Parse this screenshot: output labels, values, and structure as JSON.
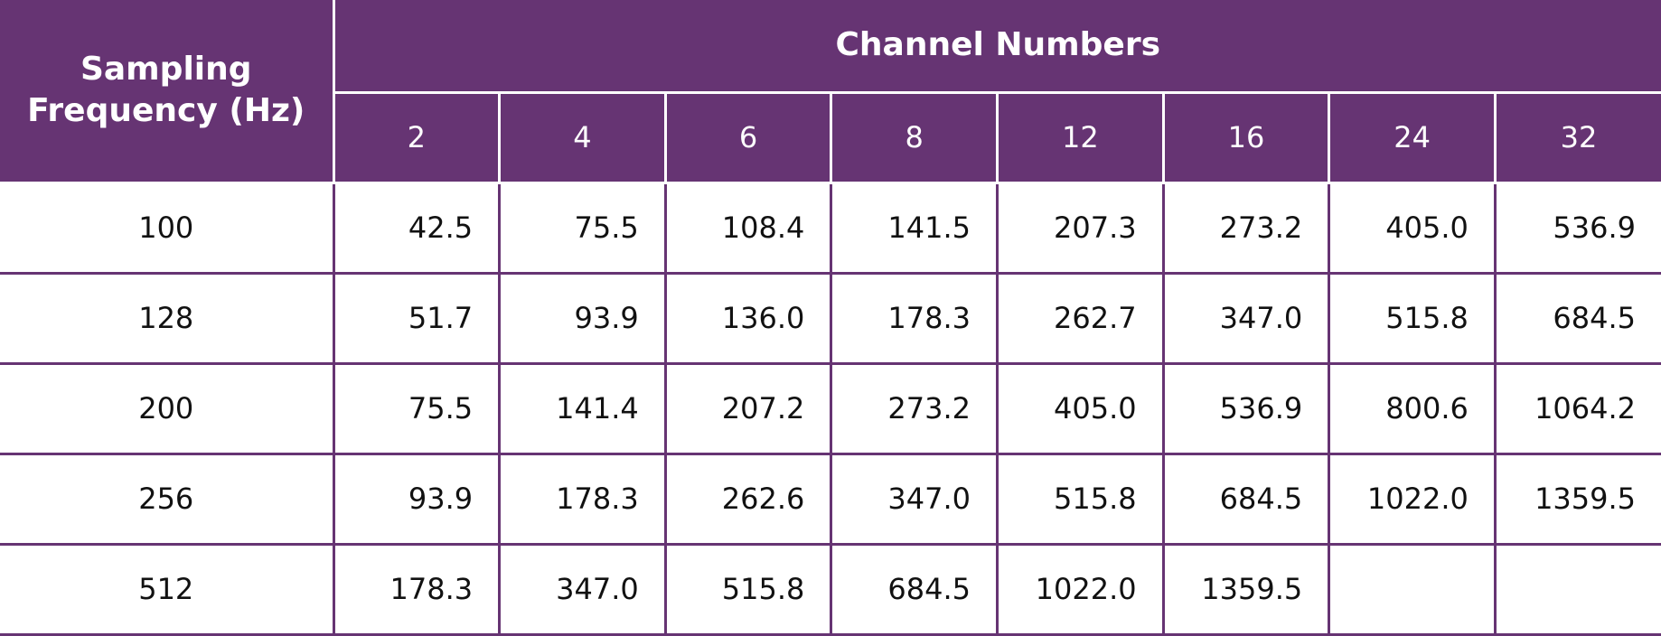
{
  "header": {
    "title": "Sampling Frequency (Hz)",
    "group": "Channel Numbers",
    "columns": [
      "2",
      "4",
      "6",
      "8",
      "12",
      "16",
      "24",
      "32"
    ]
  },
  "table": {
    "rows": [
      [
        "100",
        "42.5",
        "75.5",
        "108.4",
        "141.5",
        "207.3",
        "273.2",
        "405.0",
        "536.9"
      ],
      [
        "128",
        "51.7",
        "93.9",
        "136.0",
        "178.3",
        "262.7",
        "347.0",
        "515.8",
        "684.5"
      ],
      [
        "200",
        "75.5",
        "141.4",
        "207.2",
        "273.2",
        "405.0",
        "536.9",
        "800.6",
        "1064.2"
      ],
      [
        "256",
        "93.9",
        "178.3",
        "262.6",
        "347.0",
        "515.8",
        "684.5",
        "1022.0",
        "1359.5"
      ],
      [
        "512",
        "178.3",
        "347.0",
        "515.8",
        "684.5",
        "1022.0",
        "1359.5"
      ]
    ]
  }
}
